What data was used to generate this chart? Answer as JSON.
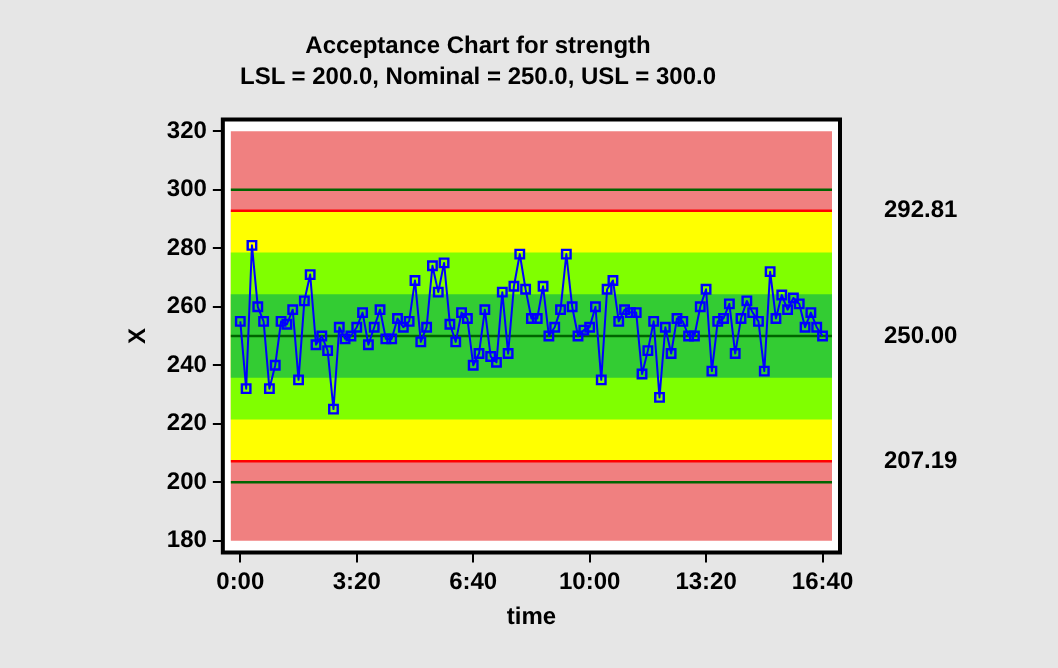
{
  "chart_data": {
    "type": "line",
    "title": "Acceptance Chart for strength",
    "subtitle": "LSL = 200.0, Nominal = 250.0, USL = 300.0",
    "xlabel": "time",
    "ylabel": "X",
    "x": [
      0,
      0.167,
      0.333,
      0.5,
      0.667,
      0.833,
      1,
      1.167,
      1.333,
      1.5,
      1.667,
      1.833,
      2,
      2.167,
      2.333,
      2.5,
      2.667,
      2.833,
      3,
      3.167,
      3.333,
      3.5,
      3.667,
      3.833,
      4,
      4.167,
      4.333,
      4.5,
      4.667,
      4.833,
      5,
      5.167,
      5.333,
      5.5,
      5.667,
      5.833,
      6,
      6.167,
      6.333,
      6.5,
      6.667,
      6.833,
      7,
      7.167,
      7.333,
      7.5,
      7.667,
      7.833,
      8,
      8.167,
      8.333,
      8.5,
      8.667,
      8.833,
      9,
      9.167,
      9.333,
      9.5,
      9.667,
      9.833,
      10,
      10.167,
      10.333,
      10.5,
      10.667,
      10.833,
      11,
      11.167,
      11.333,
      11.5,
      11.667,
      11.833,
      12,
      12.167,
      12.333,
      12.5,
      12.667,
      12.833,
      13,
      13.167,
      13.333,
      13.5,
      13.667,
      13.833,
      14,
      14.167,
      14.333,
      14.5,
      14.667,
      14.833,
      15,
      15.167,
      15.333,
      15.5,
      15.667,
      15.833,
      16,
      16.167,
      16.333,
      16.5,
      16.667
    ],
    "series": [
      {
        "color": "#0000ff",
        "values": [
          255,
          232,
          281,
          260,
          255,
          232,
          240,
          255,
          254,
          259,
          235,
          262,
          271,
          247,
          250,
          245,
          225,
          253,
          249,
          250,
          253,
          258,
          247,
          253,
          259,
          249,
          249,
          256,
          253,
          255,
          269,
          248,
          253,
          274,
          265,
          275,
          254,
          248,
          258,
          256,
          240,
          244,
          259,
          243,
          241,
          265,
          244,
          267,
          278,
          266,
          256,
          256,
          267,
          250,
          253,
          259,
          278,
          260,
          250,
          252,
          253,
          260,
          235,
          266,
          269,
          255,
          259,
          258,
          258,
          237,
          245,
          255,
          229,
          253,
          244,
          256,
          255,
          250,
          250,
          260,
          266,
          238,
          255,
          256,
          261,
          244,
          256,
          262,
          258,
          255,
          238,
          272,
          256,
          264,
          259,
          263,
          261,
          253,
          258,
          253,
          250
        ]
      }
    ],
    "xlim": [
      -0.5,
      17.167
    ],
    "xticks": [
      {
        "value": 0,
        "label": "0:00"
      },
      {
        "value": 3.333,
        "label": "3:20"
      },
      {
        "value": 6.667,
        "label": "6:40"
      },
      {
        "value": 10,
        "label": "10:00"
      },
      {
        "value": 13.333,
        "label": "13:20"
      },
      {
        "value": 16.667,
        "label": "16:40"
      }
    ],
    "ylim": [
      176,
      324
    ],
    "yticks": [
      180,
      200,
      220,
      240,
      260,
      280,
      300,
      320
    ],
    "bands": [
      {
        "axis": "y",
        "from": 180,
        "to": 320,
        "color": "#f08080"
      },
      {
        "axis": "y",
        "from": 207.19,
        "to": 292.81,
        "color": "#ffff00"
      },
      {
        "axis": "y",
        "from": 221.46,
        "to": 278.54,
        "color": "#80ff00"
      },
      {
        "axis": "y",
        "from": 235.73,
        "to": 264.27,
        "color": "#33cc33"
      }
    ],
    "ref_lines": [
      {
        "axis": "y",
        "value": 200,
        "color": "#006400"
      },
      {
        "axis": "y",
        "value": 300,
        "color": "#006400"
      },
      {
        "axis": "y",
        "value": 250,
        "label": "250.00",
        "color": "#006400"
      },
      {
        "axis": "y",
        "value": 207.19,
        "label": "207.19",
        "color": "#ff0000"
      },
      {
        "axis": "y",
        "value": 292.81,
        "label": "292.81",
        "color": "#ff0000"
      }
    ],
    "grid": false,
    "legend": false,
    "marker": "square",
    "line_style": "solid"
  }
}
